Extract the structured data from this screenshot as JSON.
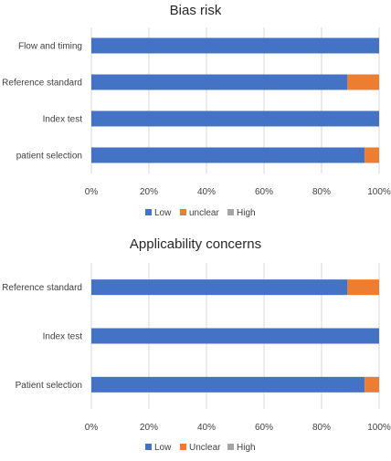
{
  "colors": {
    "low": "#4472C4",
    "unclear": "#ED7D31",
    "high": "#A5A5A5",
    "grid": "#D9D9D9",
    "text": "#404040",
    "title": "#262626"
  },
  "chart_data": [
    {
      "type": "bar",
      "orientation": "horizontal",
      "stacked": "percent",
      "title": "Bias risk",
      "categories": [
        "Flow and timing",
        "Reference standard",
        "Index test",
        "patient selection"
      ],
      "series": [
        {
          "name": "Low",
          "values": [
            1.0,
            0.89,
            1.0,
            0.95
          ]
        },
        {
          "name": "unclear",
          "values": [
            0.0,
            0.11,
            0.0,
            0.05
          ]
        },
        {
          "name": "High",
          "values": [
            0.0,
            0.0,
            0.0,
            0.0
          ]
        }
      ],
      "xlim": [
        0,
        1
      ],
      "x_ticks": [
        "0%",
        "20%",
        "40%",
        "60%",
        "80%",
        "100%"
      ],
      "grid": true,
      "legend": "bottom"
    },
    {
      "type": "bar",
      "orientation": "horizontal",
      "stacked": "percent",
      "title": "Applicability concerns",
      "categories": [
        "Reference standard",
        "Index test",
        "Patient selection"
      ],
      "series": [
        {
          "name": "Low",
          "values": [
            0.89,
            1.0,
            0.95
          ]
        },
        {
          "name": "Unclear",
          "values": [
            0.11,
            0.0,
            0.05
          ]
        },
        {
          "name": "High",
          "values": [
            0.0,
            0.0,
            0.0
          ]
        }
      ],
      "xlim": [
        0,
        1
      ],
      "x_ticks": [
        "0%",
        "20%",
        "40%",
        "60%",
        "80%",
        "100%"
      ],
      "grid": true,
      "legend": "bottom"
    }
  ]
}
